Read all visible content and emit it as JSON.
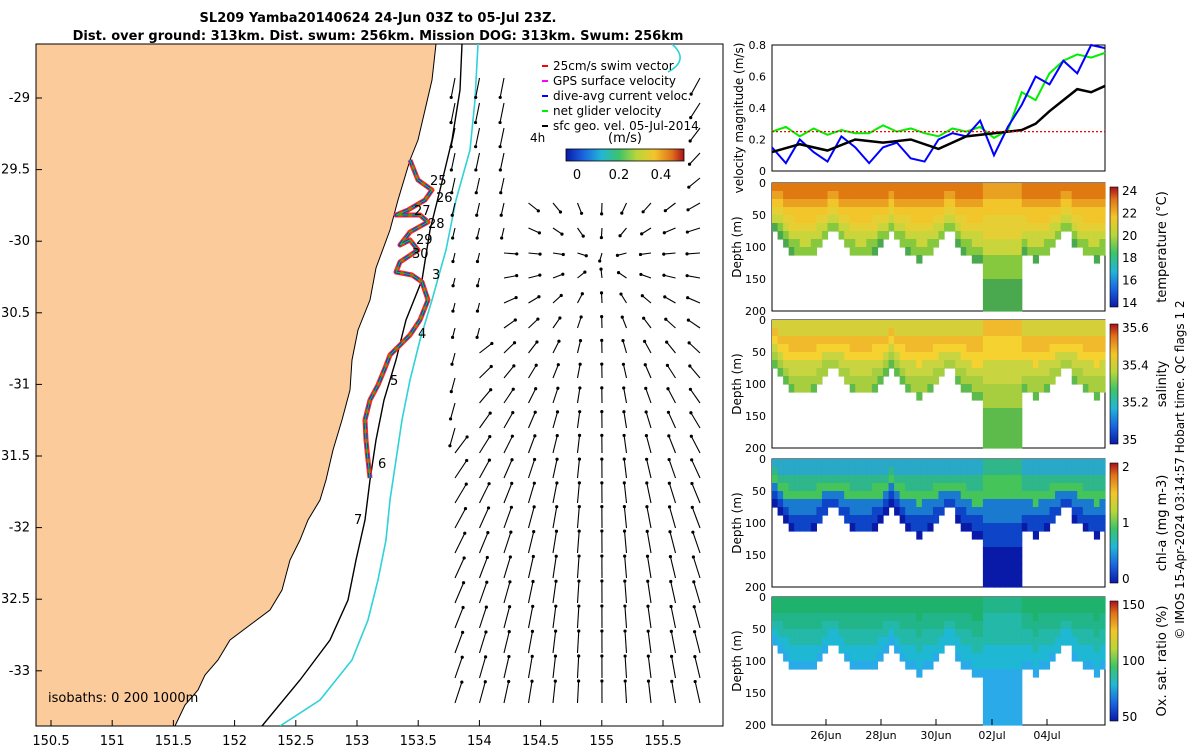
{
  "title": {
    "line1": "SL209 Yamba20140624 24-Jun 03Z to 05-Jul 23Z.",
    "line2": "Dist. over ground: 313km. Dist. swum: 256km. Mission DOG: 313km. Swum: 256km"
  },
  "map": {
    "lon_ticks": [
      "150.5",
      "151",
      "151.5",
      "152",
      "152.5",
      "153",
      "153.5",
      "154",
      "154.5",
      "155",
      "155.5"
    ],
    "lat_ticks": [
      "-29",
      "29.5",
      "-30",
      "30.5",
      "-31",
      "31.5",
      "-32",
      "32.5",
      "-33"
    ],
    "land_color": "#fbcb9b",
    "isobath_label": "isobaths: 0   200   1000m",
    "day_labels": [
      "25",
      "26",
      "27",
      "28",
      "29",
      "30",
      "3",
      "4",
      "5",
      "6",
      "7"
    ],
    "time_tag": "4h",
    "legend": [
      {
        "label": "25cm/s swim vector",
        "color": "#ff0000"
      },
      {
        "label": "GPS surface velocity",
        "color": "#ff00ff"
      },
      {
        "label": "dive-avg current veloc.",
        "color": "#0000ff"
      },
      {
        "label": "net glider velocity",
        "color": "#00ee00"
      },
      {
        "label": "sfc geo. vel. 05-Jul-2014",
        "color": "#000000"
      }
    ],
    "colorbar": {
      "unit": "(m/s)",
      "ticks": [
        "0",
        "0.2",
        "0.4"
      ]
    }
  },
  "chart_data": [
    {
      "type": "line",
      "ylabel": "velocity magnitude (m/s)",
      "ylim": [
        0,
        0.8
      ],
      "yticks": [
        "0.8",
        "0.6",
        "0.4",
        "0.2",
        "0"
      ],
      "xlim_days": [
        0,
        12
      ],
      "series": [
        {
          "color": "#00ee00",
          "x": [
            0,
            0.5,
            1,
            1.5,
            2,
            2.5,
            3,
            3.5,
            4,
            4.5,
            5,
            5.5,
            6,
            6.5,
            7,
            7.5,
            8,
            8.5,
            9,
            9.5,
            10,
            10.5,
            11,
            11.5,
            12
          ],
          "values": [
            0.25,
            0.28,
            0.22,
            0.27,
            0.23,
            0.26,
            0.24,
            0.24,
            0.29,
            0.25,
            0.27,
            0.24,
            0.22,
            0.27,
            0.25,
            0.28,
            0.21,
            0.26,
            0.5,
            0.45,
            0.62,
            0.7,
            0.74,
            0.72,
            0.75
          ]
        },
        {
          "color": "#0000ff",
          "x": [
            0,
            0.5,
            1,
            1.5,
            2,
            2.5,
            3,
            3.5,
            4,
            4.5,
            5,
            5.5,
            6,
            6.5,
            7,
            7.5,
            8,
            8.5,
            9,
            9.5,
            10,
            10.5,
            11,
            11.5,
            12
          ],
          "values": [
            0.15,
            0.05,
            0.2,
            0.12,
            0.06,
            0.22,
            0.15,
            0.05,
            0.15,
            0.18,
            0.08,
            0.06,
            0.2,
            0.24,
            0.22,
            0.32,
            0.1,
            0.28,
            0.42,
            0.6,
            0.55,
            0.7,
            0.62,
            0.8,
            0.78
          ]
        },
        {
          "color": "#000000",
          "x": [
            0,
            1,
            2,
            3,
            4,
            5,
            6,
            7,
            8,
            9,
            9.5,
            10,
            10.5,
            11,
            11.5,
            12
          ],
          "values": [
            0.12,
            0.17,
            0.13,
            0.2,
            0.18,
            0.2,
            0.14,
            0.22,
            0.24,
            0.26,
            0.3,
            0.38,
            0.45,
            0.52,
            0.5,
            0.54
          ]
        },
        {
          "color": "#ff0000",
          "x": [
            0,
            12
          ],
          "values": [
            0.25,
            0.25
          ]
        }
      ]
    },
    {
      "type": "heatmap",
      "ylabel": "Depth (m)",
      "cblabel": "temperature (°C)",
      "yticks": [
        "0",
        "50",
        "100",
        "150",
        "200"
      ],
      "cbticks": [
        "24",
        "22",
        "20",
        "18",
        "16",
        "14"
      ],
      "colors": [
        "#e07a10",
        "#eaa020",
        "#f2c52a",
        "#e6cf35",
        "#c9d53a",
        "#86c83e",
        "#4aa84e"
      ]
    },
    {
      "type": "heatmap",
      "ylabel": "Depth (m)",
      "cblabel": "salinity",
      "yticks": [
        "0",
        "50",
        "100",
        "150",
        "200"
      ],
      "cbticks": [
        "35.6",
        "35.4",
        "35.2",
        "35"
      ],
      "colors": [
        "#d5cf3a",
        "#f0ba2c",
        "#f5d22f",
        "#c8d440",
        "#a6ce3f",
        "#5dbb4c"
      ]
    },
    {
      "type": "heatmap",
      "ylabel": "Depth (m)",
      "cblabel": "chl-a (mg m-3)",
      "yticks": [
        "0",
        "50",
        "100",
        "150",
        "200"
      ],
      "cbticks": [
        "2",
        "1",
        "0"
      ],
      "colors": [
        "#29a8c8",
        "#2fb68a",
        "#45c45a",
        "#1a7ad0",
        "#0d44c8",
        "#0a1aa8"
      ]
    },
    {
      "type": "heatmap",
      "ylabel": "Depth (m)",
      "cblabel": "Ox. sat. ratio (%)",
      "yticks": [
        "0",
        "50",
        "100",
        "150",
        "200"
      ],
      "cbticks": [
        "150",
        "100",
        "50"
      ],
      "colors": [
        "#1eb26c",
        "#22b58a",
        "#23b8a8",
        "#1eb8d4",
        "#2aaae8"
      ]
    }
  ],
  "time_axis": {
    "ticks": [
      "26Jun",
      "28Jun",
      "30Jun",
      "02Jul",
      "04Jul"
    ]
  },
  "side_note": "© IMOS 15-Apr-2024 03:14:57 Hobart time. QC flags 1  2"
}
